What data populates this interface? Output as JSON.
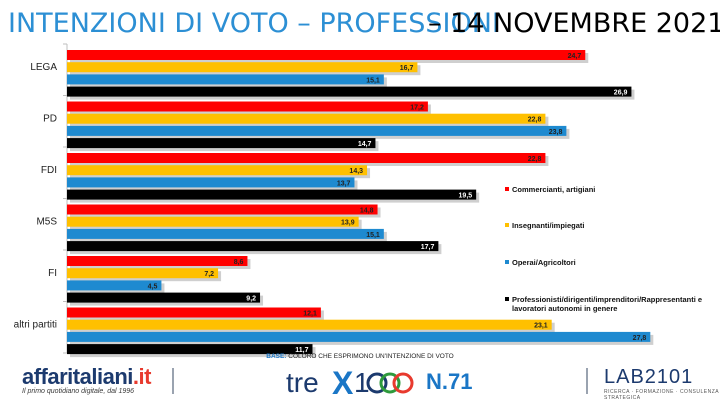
{
  "header": {
    "title_main": "INTENZIONI DI VOTO – PROFESSIONI",
    "title_date": "– 14 NOVEMBRE 2021"
  },
  "chart_data": {
    "type": "bar",
    "orientation": "horizontal",
    "categories": [
      "LEGA",
      "PD",
      "FDI",
      "M5S",
      "FI",
      "altri partiti"
    ],
    "series": [
      {
        "name": "Commercianti, artigiani",
        "color": "#ff0000",
        "values": [
          24.7,
          17.2,
          22.8,
          14.8,
          8.6,
          12.1
        ],
        "labels": [
          "24,7",
          "17,2",
          "22,8",
          "14,8",
          "8,6",
          "12,1"
        ]
      },
      {
        "name": "Insegnanti/impiegati",
        "color": "#ffc000",
        "values": [
          16.7,
          22.8,
          14.3,
          13.9,
          7.2,
          23.1
        ],
        "labels": [
          "16,7",
          "22,8",
          "14,3",
          "13,9",
          "7,2",
          "23,1"
        ]
      },
      {
        "name": "Operai/Agricoltori",
        "color": "#1e8ad0",
        "values": [
          15.1,
          23.8,
          13.7,
          15.1,
          4.5,
          27.8
        ],
        "labels": [
          "15,1",
          "23,8",
          "13,7",
          "15,1",
          "4,5",
          "27,8"
        ]
      },
      {
        "name": "Professionisti/dirigenti/imprenditori/Rappresentanti e lavoratori autonomi in genere",
        "color": "#000000",
        "values": [
          26.9,
          14.7,
          19.5,
          17.7,
          9.2,
          11.7
        ],
        "labels": [
          "26,9",
          "14,7",
          "19,5",
          "17,7",
          "9,2",
          "11,7"
        ]
      }
    ],
    "xlim": [
      0,
      28.5
    ],
    "grid": false,
    "legend_position": "right"
  },
  "legend": [
    {
      "label": "Commercianti, artigiani",
      "color": "#ff0000"
    },
    {
      "label": "Insegnanti/impiegati",
      "color": "#ffc000"
    },
    {
      "label": "Operai/Agricoltori",
      "color": "#1e8ad0"
    },
    {
      "label": "Professionisti/dirigenti/imprenditori/Rappresentanti e lavoratori autonomi in genere",
      "color": "#000000"
    }
  ],
  "footer": {
    "base_label": "BASE:",
    "base_text": "COLORO CHE ESPRIMONO UN'INTENZIONE DI VOTO",
    "brand_left_a": "affaritaliani",
    "brand_left_b": ".it",
    "brand_left_sub": "Il primo quotidiano digitale, dal 1996",
    "brand_mid": "tre",
    "brand_mid_x": "X",
    "brand_mid_num": "1",
    "brand_mid_issue": "N.71",
    "brand_right": "LAB2101",
    "brand_right_sub": "RICERCA · FORMAZIONE · CONSULENZA STRATEGICA"
  }
}
